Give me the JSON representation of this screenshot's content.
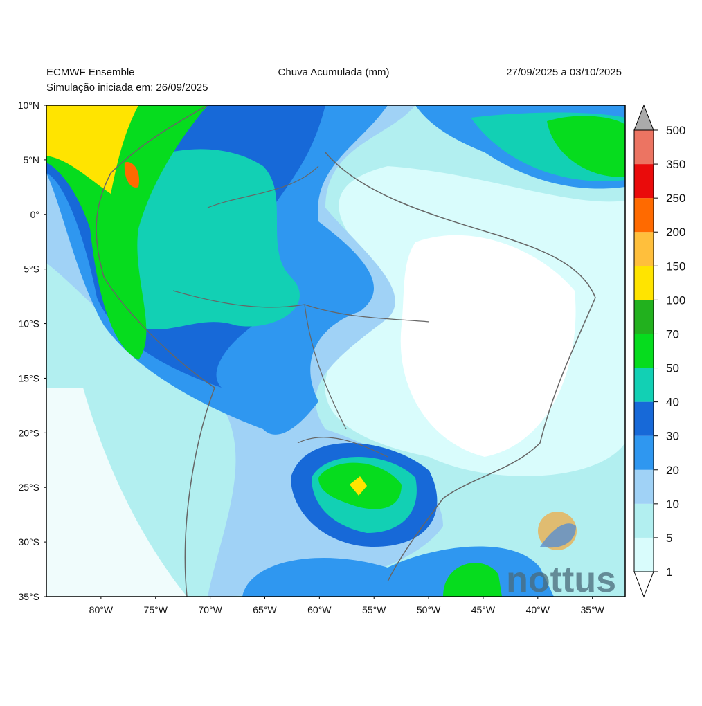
{
  "header": {
    "left_title": "ECMWF Ensemble",
    "left_subtitle": "Simulação iniciada em: 26/09/2025",
    "center_title": "Chuva Acumulada (mm)",
    "right_title": "27/09/2025 a 03/10/2025"
  },
  "map": {
    "lon_range": [
      -85,
      -32
    ],
    "lat_range": [
      -35,
      10
    ],
    "lat_ticks": [
      {
        "value": 10,
        "label": "10°N"
      },
      {
        "value": 5,
        "label": "5°N"
      },
      {
        "value": 0,
        "label": "0°"
      },
      {
        "value": -5,
        "label": "5°S"
      },
      {
        "value": -10,
        "label": "10°S"
      },
      {
        "value": -15,
        "label": "15°S"
      },
      {
        "value": -20,
        "label": "20°S"
      },
      {
        "value": -25,
        "label": "25°S"
      },
      {
        "value": -30,
        "label": "30°S"
      },
      {
        "value": -35,
        "label": "35°S"
      }
    ],
    "lon_ticks": [
      {
        "value": -80,
        "label": "80°W"
      },
      {
        "value": -75,
        "label": "75°W"
      },
      {
        "value": -70,
        "label": "70°W"
      },
      {
        "value": -65,
        "label": "65°W"
      },
      {
        "value": -60,
        "label": "60°W"
      },
      {
        "value": -55,
        "label": "55°W"
      },
      {
        "value": -50,
        "label": "50°W"
      },
      {
        "value": -45,
        "label": "45°W"
      },
      {
        "value": -40,
        "label": "40°W"
      },
      {
        "value": -35,
        "label": "35°W"
      }
    ]
  },
  "colorbar": {
    "levels": [
      1,
      5,
      10,
      20,
      30,
      40,
      50,
      70,
      100,
      150,
      200,
      250,
      350,
      500
    ],
    "colors": [
      "#d9fcfc",
      "#b2eff0",
      "#a0d2f6",
      "#2f97f0",
      "#1769d8",
      "#12d0b4",
      "#06dc1e",
      "#22b11e",
      "#ffe400",
      "#ffbf3c",
      "#ff6a00",
      "#ea0b0b",
      "#ec7462"
    ],
    "under_color": "#ffffff",
    "over_color": "#aaaaaa"
  },
  "watermark": "nottus"
}
